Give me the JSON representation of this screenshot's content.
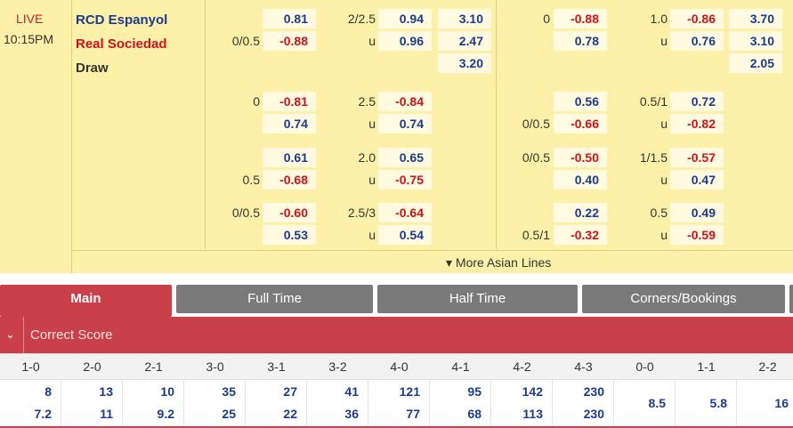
{
  "match": {
    "status": "LIVE",
    "time": "10:15PM",
    "home": "RCD Espanyol",
    "away": "Real Sociedad",
    "draw": "Draw"
  },
  "odds_rows": [
    {
      "cells": [
        {
          "t": "v",
          "c": "blue",
          "val": "0.81"
        },
        {
          "t": "h",
          "val": "2/2.5"
        },
        {
          "t": "v",
          "c": "blue",
          "val": "0.94"
        },
        {
          "t": "v",
          "c": "blue",
          "val": "3.10"
        },
        {
          "t": "h",
          "val": "0"
        },
        {
          "t": "v",
          "c": "red",
          "val": "-0.88"
        },
        {
          "t": "h",
          "val": "1.0"
        },
        {
          "t": "v",
          "c": "red",
          "val": "-0.86"
        },
        {
          "t": "v",
          "c": "blue",
          "val": "3.70"
        }
      ]
    },
    {
      "cells": [
        {
          "t": "h",
          "val": "0/0.5"
        },
        {
          "t": "v",
          "c": "red",
          "val": "-0.88"
        },
        {
          "t": "h",
          "val": "u"
        },
        {
          "t": "v",
          "c": "blue",
          "val": "0.96"
        },
        {
          "t": "v",
          "c": "blue",
          "val": "2.47"
        },
        {
          "t": "v",
          "c": "blue",
          "val": "0.78"
        },
        {
          "t": "h",
          "val": "u"
        },
        {
          "t": "v",
          "c": "blue",
          "val": "0.76"
        },
        {
          "t": "v",
          "c": "blue",
          "val": "3.10"
        }
      ]
    },
    {
      "cells": [
        {
          "t": "v",
          "c": "blue",
          "val": "3.20"
        },
        {
          "t": "v",
          "c": "blue",
          "val": "2.05"
        }
      ]
    }
  ],
  "asian_lines": [
    {
      "ah_home_h": "0",
      "ah_home": "-0.81",
      "ah_away": "0.74",
      "ah_away_h": "",
      "ou_h": "2.5",
      "ou_over": "-0.84",
      "ou_under": "0.74",
      "h1_home_h": "",
      "h1_home": "0.56",
      "h1_away_h": "0/0.5",
      "h1_away": "-0.66",
      "h1ou_h": "0.5/1",
      "h1ou_over": "0.72",
      "h1ou_under": "-0.82"
    },
    {
      "ah_home_h": "",
      "ah_home": "0.61",
      "ah_away": "-0.68",
      "ah_away_h": "0.5",
      "ou_h": "2.0",
      "ou_over": "0.65",
      "ou_under": "-0.75",
      "h1_home_h": "0/0.5",
      "h1_home": "-0.50",
      "h1_away_h": "",
      "h1_away": "0.40",
      "h1ou_h": "1/1.5",
      "h1ou_over": "-0.57",
      "h1ou_under": "0.47"
    },
    {
      "ah_home_h": "0/0.5",
      "ah_home": "-0.60",
      "ah_away": "0.53",
      "ah_away_h": "",
      "ou_h": "2.5/3",
      "ou_over": "-0.64",
      "ou_under": "0.54",
      "h1_home_h": "",
      "h1_home": "0.22",
      "h1_away_h": "0.5/1",
      "h1_away": "-0.32",
      "h1ou_h": "0.5",
      "h1ou_over": "0.49",
      "h1ou_under": "-0.59"
    }
  ],
  "under_label": "u",
  "more_label": "▾ More Asian Lines",
  "tabs": [
    "Main",
    "Full Time",
    "Half Time",
    "Corners/Bookings"
  ],
  "section": {
    "chevron": "⌄",
    "title": "Correct Score"
  },
  "correct_score": {
    "headers": [
      "1-0",
      "2-0",
      "2-1",
      "3-0",
      "3-1",
      "3-2",
      "4-0",
      "4-1",
      "4-2",
      "4-3",
      "0-0",
      "1-1",
      "2-2"
    ],
    "home_odds": [
      "8",
      "13",
      "10",
      "35",
      "27",
      "41",
      "121",
      "95",
      "142",
      "230"
    ],
    "away_odds": [
      "7.2",
      "11",
      "9.2",
      "25",
      "22",
      "36",
      "77",
      "68",
      "113",
      "230"
    ],
    "draw_odds": [
      "8.5",
      "5.8",
      "16"
    ]
  },
  "colors": {
    "accent": "#c9404a",
    "odds_bg": "#fdf0a8",
    "blue": "#1a3c8f",
    "red": "#d0121b",
    "tab_gray": "#7a7a7a"
  }
}
